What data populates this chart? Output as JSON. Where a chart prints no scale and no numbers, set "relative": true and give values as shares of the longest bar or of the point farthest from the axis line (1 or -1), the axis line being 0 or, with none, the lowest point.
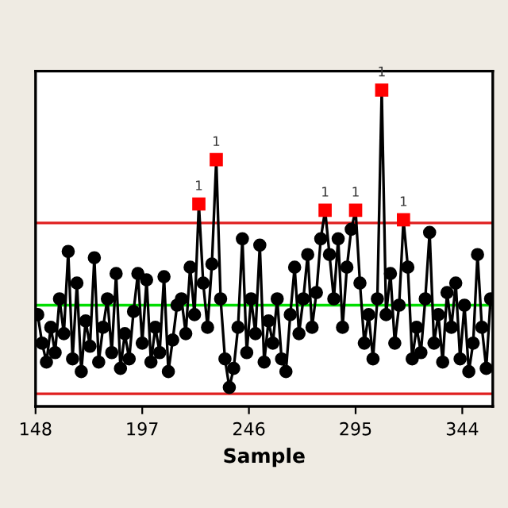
{
  "chart_data": {
    "type": "line",
    "xlabel": "Sample",
    "relative": true,
    "xlim": [
      148,
      358
    ],
    "xticks": [
      148,
      197,
      246,
      295,
      344
    ],
    "tick_labels": "x",
    "grid": false,
    "legend": false,
    "marker": "circle",
    "line_style": "solid",
    "x": [
      149,
      151,
      153,
      155,
      157,
      159,
      161,
      163,
      165,
      167,
      169,
      171,
      173,
      175,
      177,
      179,
      181,
      183,
      185,
      187,
      189,
      191,
      193,
      195,
      197,
      199,
      201,
      203,
      205,
      207,
      209,
      211,
      213,
      215,
      217,
      219,
      221,
      223,
      225,
      227,
      229,
      231,
      233,
      235,
      237,
      239,
      241,
      243,
      245,
      247,
      249,
      251,
      253,
      255,
      257,
      259,
      261,
      263,
      265,
      267,
      269,
      271,
      273,
      275,
      277,
      279,
      281,
      283,
      285,
      287,
      289,
      291,
      293,
      295,
      297,
      299,
      301,
      303,
      305,
      307,
      309,
      311,
      313,
      315,
      317,
      319,
      321,
      323,
      325,
      327,
      329,
      331,
      333,
      335,
      337,
      339,
      341,
      343,
      345,
      347,
      349,
      351,
      353,
      355,
      357
    ],
    "series": [
      {
        "color": "#000000",
        "values": [
          0.29,
          0.2,
          0.14,
          0.25,
          0.17,
          0.34,
          0.23,
          0.49,
          0.15,
          0.39,
          0.11,
          0.27,
          0.19,
          0.47,
          0.14,
          0.25,
          0.34,
          0.17,
          0.42,
          0.12,
          0.23,
          0.15,
          0.3,
          0.42,
          0.2,
          0.4,
          0.14,
          0.25,
          0.17,
          0.41,
          0.11,
          0.21,
          0.32,
          0.34,
          0.23,
          0.44,
          0.29,
          0.64,
          0.39,
          0.25,
          0.45,
          0.78,
          0.34,
          0.15,
          0.06,
          0.12,
          0.25,
          0.53,
          0.17,
          0.34,
          0.23,
          0.51,
          0.14,
          0.27,
          0.2,
          0.34,
          0.15,
          0.11,
          0.29,
          0.44,
          0.23,
          0.34,
          0.48,
          0.25,
          0.36,
          0.53,
          0.62,
          0.48,
          0.34,
          0.53,
          0.25,
          0.44,
          0.56,
          0.62,
          0.39,
          0.2,
          0.29,
          0.15,
          0.34,
          1.0,
          0.29,
          0.42,
          0.2,
          0.32,
          0.59,
          0.44,
          0.15,
          0.25,
          0.17,
          0.34,
          0.55,
          0.2,
          0.29,
          0.14,
          0.36,
          0.25,
          0.39,
          0.15,
          0.32,
          0.11,
          0.2,
          0.48,
          0.25,
          0.12,
          0.34
        ],
        "colors": [
          "#000000",
          "#000000",
          "#000000",
          "#000000",
          "#000000",
          "#000000",
          "#000000",
          "#000000",
          "#000000",
          "#000000",
          "#000000",
          "#000000",
          "#000000",
          "#000000",
          "#000000",
          "#000000",
          "#000000",
          "#000000",
          "#000000",
          "#000000",
          "#000000",
          "#000000",
          "#000000",
          "#000000",
          "#000000",
          "#000000",
          "#000000",
          "#000000",
          "#000000",
          "#000000",
          "#000000",
          "#000000",
          "#000000",
          "#000000",
          "#000000",
          "#000000",
          "#000000",
          "#ff0000",
          "#000000",
          "#000000",
          "#000000",
          "#ff0000",
          "#000000",
          "#000000",
          "#000000",
          "#000000",
          "#000000",
          "#000000",
          "#000000",
          "#000000",
          "#000000",
          "#000000",
          "#000000",
          "#000000",
          "#000000",
          "#000000",
          "#000000",
          "#000000",
          "#000000",
          "#000000",
          "#000000",
          "#000000",
          "#000000",
          "#000000",
          "#000000",
          "#000000",
          "#ff0000",
          "#000000",
          "#000000",
          "#000000",
          "#000000",
          "#000000",
          "#000000",
          "#ff0000",
          "#000000",
          "#000000",
          "#000000",
          "#000000",
          "#000000",
          "#ff0000",
          "#000000",
          "#000000",
          "#000000",
          "#000000",
          "#ff0000",
          "#000000",
          "#000000",
          "#000000",
          "#000000",
          "#000000",
          "#000000",
          "#000000",
          "#000000",
          "#000000",
          "#000000",
          "#000000",
          "#000000",
          "#000000",
          "#000000",
          "#000000",
          "#000000",
          "#000000",
          "#000000",
          "#000000",
          "#000000"
        ]
      }
    ],
    "ref_lines": [
      {
        "axis": "y",
        "value": 0.58,
        "color": "#e02020"
      },
      {
        "axis": "y",
        "value": 0.32,
        "color": "#00dd00"
      },
      {
        "axis": "y",
        "value": 0.04,
        "color": "#e02020"
      }
    ],
    "annotations": [
      {
        "text": "1",
        "x": 223,
        "y": 0.64
      },
      {
        "text": "1",
        "x": 231,
        "y": 0.78
      },
      {
        "text": "1",
        "x": 281,
        "y": 0.62
      },
      {
        "text": "1",
        "x": 295,
        "y": 0.62
      },
      {
        "text": "1",
        "x": 307,
        "y": 1.0
      },
      {
        "text": "1",
        "x": 317,
        "y": 0.59
      }
    ]
  }
}
